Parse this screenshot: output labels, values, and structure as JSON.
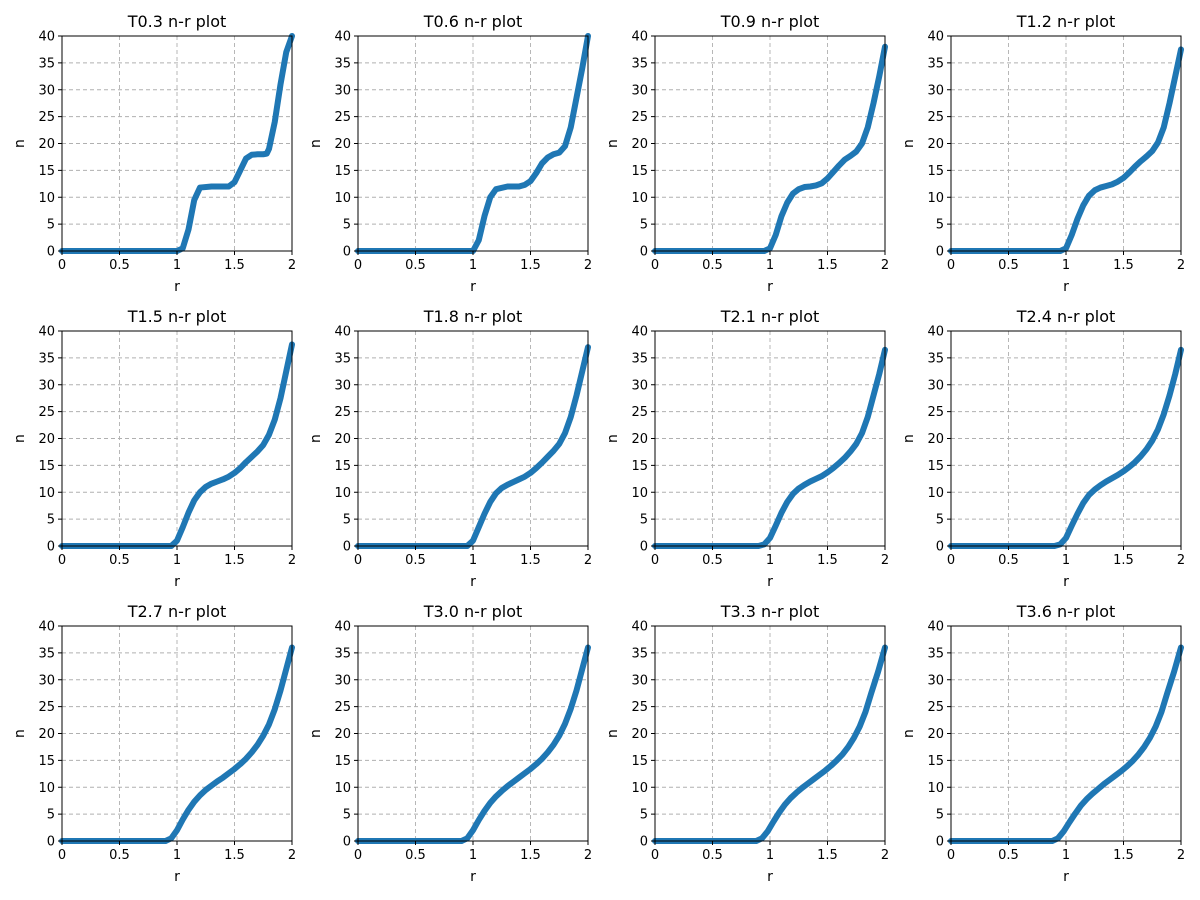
{
  "chart_data": [
    {
      "type": "line",
      "title": "T0.3 n-r plot",
      "xlabel": "r",
      "ylabel": "n",
      "xlim": [
        0,
        2
      ],
      "ylim": [
        0,
        40
      ],
      "xticks": [
        "0",
        "0.5",
        "1",
        "1.5",
        "2"
      ],
      "yticks": [
        "0",
        "5",
        "10",
        "15",
        "20",
        "25",
        "30",
        "35",
        "40"
      ],
      "grid": true,
      "color": "#1f77b4",
      "series": [
        {
          "x": [
            0,
            1.0,
            1.05,
            1.1,
            1.15,
            1.2,
            1.3,
            1.4,
            1.45,
            1.5,
            1.55,
            1.6,
            1.65,
            1.7,
            1.75,
            1.78,
            1.8,
            1.85,
            1.9,
            1.95,
            2.0
          ],
          "y": [
            0,
            0,
            0.5,
            4,
            9.5,
            11.8,
            12,
            12,
            12,
            12.8,
            15,
            17.2,
            17.9,
            18,
            18,
            18.1,
            19,
            24,
            31,
            37,
            40
          ]
        }
      ]
    },
    {
      "type": "line",
      "title": "T0.6 n-r plot",
      "xlabel": "r",
      "ylabel": "n",
      "xlim": [
        0,
        2
      ],
      "ylim": [
        0,
        40
      ],
      "xticks": [
        "0",
        "0.5",
        "1",
        "1.5",
        "2"
      ],
      "yticks": [
        "0",
        "5",
        "10",
        "15",
        "20",
        "25",
        "30",
        "35",
        "40"
      ],
      "grid": true,
      "color": "#1f77b4",
      "series": [
        {
          "x": [
            0,
            1.0,
            1.05,
            1.1,
            1.15,
            1.2,
            1.3,
            1.4,
            1.45,
            1.5,
            1.55,
            1.6,
            1.65,
            1.7,
            1.75,
            1.8,
            1.85,
            1.9,
            1.95,
            2.0
          ],
          "y": [
            0,
            0,
            2,
            6.5,
            10,
            11.5,
            12,
            12,
            12.3,
            13,
            14.5,
            16.3,
            17.4,
            18,
            18.3,
            19.5,
            23,
            28.5,
            34,
            40
          ]
        }
      ]
    },
    {
      "type": "line",
      "title": "T0.9 n-r plot",
      "xlabel": "r",
      "ylabel": "n",
      "xlim": [
        0,
        2
      ],
      "ylim": [
        0,
        40
      ],
      "xticks": [
        "0",
        "0.5",
        "1",
        "1.5",
        "2"
      ],
      "yticks": [
        "0",
        "5",
        "10",
        "15",
        "20",
        "25",
        "30",
        "35",
        "40"
      ],
      "grid": true,
      "color": "#1f77b4",
      "series": [
        {
          "x": [
            0,
            0.95,
            1.0,
            1.05,
            1.1,
            1.15,
            1.2,
            1.25,
            1.3,
            1.35,
            1.4,
            1.45,
            1.5,
            1.55,
            1.6,
            1.65,
            1.7,
            1.75,
            1.8,
            1.85,
            1.9,
            1.95,
            2.0
          ],
          "y": [
            0,
            0,
            0.5,
            3,
            6.5,
            9,
            10.7,
            11.5,
            11.9,
            12,
            12.2,
            12.6,
            13.5,
            14.7,
            15.9,
            17,
            17.7,
            18.5,
            20,
            23,
            27.5,
            32.5,
            38
          ]
        }
      ]
    },
    {
      "type": "line",
      "title": "T1.2 n-r plot",
      "xlabel": "r",
      "ylabel": "n",
      "xlim": [
        0,
        2
      ],
      "ylim": [
        0,
        40
      ],
      "xticks": [
        "0",
        "0.5",
        "1",
        "1.5",
        "2"
      ],
      "yticks": [
        "0",
        "5",
        "10",
        "15",
        "20",
        "25",
        "30",
        "35",
        "40"
      ],
      "grid": true,
      "color": "#1f77b4",
      "series": [
        {
          "x": [
            0,
            0.95,
            1.0,
            1.05,
            1.1,
            1.15,
            1.2,
            1.25,
            1.3,
            1.35,
            1.4,
            1.45,
            1.5,
            1.55,
            1.6,
            1.65,
            1.7,
            1.75,
            1.8,
            1.85,
            1.9,
            1.95,
            2.0
          ],
          "y": [
            0,
            0,
            0.5,
            3,
            6,
            8.5,
            10.3,
            11.3,
            11.8,
            12.1,
            12.4,
            12.9,
            13.6,
            14.6,
            15.7,
            16.7,
            17.6,
            18.6,
            20.2,
            23,
            27.5,
            32.5,
            37.5
          ]
        }
      ]
    },
    {
      "type": "line",
      "title": "T1.5 n-r plot",
      "xlabel": "r",
      "ylabel": "n",
      "xlim": [
        0,
        2
      ],
      "ylim": [
        0,
        40
      ],
      "xticks": [
        "0",
        "0.5",
        "1",
        "1.5",
        "2"
      ],
      "yticks": [
        "0",
        "5",
        "10",
        "15",
        "20",
        "25",
        "30",
        "35",
        "40"
      ],
      "grid": true,
      "color": "#1f77b4",
      "series": [
        {
          "x": [
            0,
            0.95,
            1.0,
            1.05,
            1.1,
            1.15,
            1.2,
            1.25,
            1.3,
            1.35,
            1.4,
            1.45,
            1.5,
            1.55,
            1.6,
            1.65,
            1.7,
            1.75,
            1.8,
            1.85,
            1.9,
            1.95,
            2.0
          ],
          "y": [
            0,
            0,
            1,
            3.5,
            6.2,
            8.5,
            10,
            11,
            11.6,
            12,
            12.4,
            12.9,
            13.6,
            14.5,
            15.6,
            16.6,
            17.6,
            18.8,
            20.7,
            23.5,
            27.5,
            32.5,
            37.5
          ]
        }
      ]
    },
    {
      "type": "line",
      "title": "T1.8 n-r plot",
      "xlabel": "r",
      "ylabel": "n",
      "xlim": [
        0,
        2
      ],
      "ylim": [
        0,
        40
      ],
      "xticks": [
        "0",
        "0.5",
        "1",
        "1.5",
        "2"
      ],
      "yticks": [
        "0",
        "5",
        "10",
        "15",
        "20",
        "25",
        "30",
        "35",
        "40"
      ],
      "grid": true,
      "color": "#1f77b4",
      "series": [
        {
          "x": [
            0,
            0.95,
            1.0,
            1.05,
            1.1,
            1.15,
            1.2,
            1.25,
            1.3,
            1.35,
            1.4,
            1.45,
            1.5,
            1.55,
            1.6,
            1.65,
            1.7,
            1.75,
            1.8,
            1.85,
            1.9,
            1.95,
            2.0
          ],
          "y": [
            0,
            0,
            1,
            3.5,
            6,
            8.2,
            9.8,
            10.8,
            11.4,
            11.9,
            12.4,
            12.9,
            13.6,
            14.5,
            15.5,
            16.6,
            17.7,
            19,
            21,
            24,
            28,
            32.5,
            37
          ]
        }
      ]
    },
    {
      "type": "line",
      "title": "T2.1 n-r plot",
      "xlabel": "r",
      "ylabel": "n",
      "xlim": [
        0,
        2
      ],
      "ylim": [
        0,
        40
      ],
      "xticks": [
        "0",
        "0.5",
        "1",
        "1.5",
        "2"
      ],
      "yticks": [
        "0",
        "5",
        "10",
        "15",
        "20",
        "25",
        "30",
        "35",
        "40"
      ],
      "grid": true,
      "color": "#1f77b4",
      "series": [
        {
          "x": [
            0,
            0.9,
            0.95,
            1.0,
            1.05,
            1.1,
            1.15,
            1.2,
            1.25,
            1.3,
            1.35,
            1.4,
            1.45,
            1.5,
            1.55,
            1.6,
            1.65,
            1.7,
            1.75,
            1.8,
            1.85,
            1.9,
            1.95,
            2.0
          ],
          "y": [
            0,
            0,
            0.3,
            1.5,
            3.8,
            6.2,
            8.2,
            9.7,
            10.7,
            11.4,
            12,
            12.5,
            13,
            13.7,
            14.5,
            15.4,
            16.4,
            17.6,
            19,
            21,
            24,
            28,
            32,
            36.5
          ]
        }
      ]
    },
    {
      "type": "line",
      "title": "T2.4 n-r plot",
      "xlabel": "r",
      "ylabel": "n",
      "xlim": [
        0,
        2
      ],
      "ylim": [
        0,
        40
      ],
      "xticks": [
        "0",
        "0.5",
        "1",
        "1.5",
        "2"
      ],
      "yticks": [
        "0",
        "5",
        "10",
        "15",
        "20",
        "25",
        "30",
        "35",
        "40"
      ],
      "grid": true,
      "color": "#1f77b4",
      "series": [
        {
          "x": [
            0,
            0.9,
            0.95,
            1.0,
            1.05,
            1.1,
            1.15,
            1.2,
            1.25,
            1.3,
            1.35,
            1.4,
            1.45,
            1.5,
            1.55,
            1.6,
            1.65,
            1.7,
            1.75,
            1.8,
            1.85,
            1.9,
            1.95,
            2.0
          ],
          "y": [
            0,
            0,
            0.3,
            1.5,
            3.8,
            6,
            8,
            9.5,
            10.5,
            11.3,
            12,
            12.6,
            13.2,
            13.9,
            14.7,
            15.6,
            16.7,
            18,
            19.6,
            21.7,
            24.5,
            28,
            32,
            36.5
          ]
        }
      ]
    },
    {
      "type": "line",
      "title": "T2.7 n-r plot",
      "xlabel": "r",
      "ylabel": "n",
      "xlim": [
        0,
        2
      ],
      "ylim": [
        0,
        40
      ],
      "xticks": [
        "0",
        "0.5",
        "1",
        "1.5",
        "2"
      ],
      "yticks": [
        "0",
        "5",
        "10",
        "15",
        "20",
        "25",
        "30",
        "35",
        "40"
      ],
      "grid": true,
      "color": "#1f77b4",
      "series": [
        {
          "x": [
            0,
            0.9,
            0.95,
            1.0,
            1.05,
            1.1,
            1.15,
            1.2,
            1.25,
            1.3,
            1.35,
            1.4,
            1.45,
            1.5,
            1.55,
            1.6,
            1.65,
            1.7,
            1.75,
            1.8,
            1.85,
            1.9,
            1.95,
            2.0
          ],
          "y": [
            0,
            0,
            0.5,
            2,
            4,
            5.8,
            7.3,
            8.5,
            9.5,
            10.3,
            11.1,
            11.8,
            12.6,
            13.4,
            14.3,
            15.3,
            16.5,
            17.9,
            19.6,
            21.7,
            24.5,
            28,
            32,
            36
          ]
        }
      ]
    },
    {
      "type": "line",
      "title": "T3.0 n-r plot",
      "xlabel": "r",
      "ylabel": "n",
      "xlim": [
        0,
        2
      ],
      "ylim": [
        0,
        40
      ],
      "xticks": [
        "0",
        "0.5",
        "1",
        "1.5",
        "2"
      ],
      "yticks": [
        "0",
        "5",
        "10",
        "15",
        "20",
        "25",
        "30",
        "35",
        "40"
      ],
      "grid": true,
      "color": "#1f77b4",
      "series": [
        {
          "x": [
            0,
            0.9,
            0.95,
            1.0,
            1.05,
            1.1,
            1.15,
            1.2,
            1.25,
            1.3,
            1.35,
            1.4,
            1.45,
            1.5,
            1.55,
            1.6,
            1.65,
            1.7,
            1.75,
            1.8,
            1.85,
            1.9,
            1.95,
            2.0
          ],
          "y": [
            0,
            0,
            0.5,
            2,
            3.9,
            5.6,
            7.1,
            8.3,
            9.3,
            10.2,
            11,
            11.8,
            12.6,
            13.4,
            14.3,
            15.3,
            16.5,
            17.9,
            19.6,
            21.8,
            24.6,
            28,
            32,
            36
          ]
        }
      ]
    },
    {
      "type": "line",
      "title": "T3.3 n-r plot",
      "xlabel": "r",
      "ylabel": "n",
      "xlim": [
        0,
        2
      ],
      "ylim": [
        0,
        40
      ],
      "xticks": [
        "0",
        "0.5",
        "1",
        "1.5",
        "2"
      ],
      "yticks": [
        "0",
        "5",
        "10",
        "15",
        "20",
        "25",
        "30",
        "35",
        "40"
      ],
      "grid": true,
      "color": "#1f77b4",
      "series": [
        {
          "x": [
            0,
            0.88,
            0.93,
            0.98,
            1.03,
            1.08,
            1.13,
            1.18,
            1.23,
            1.28,
            1.33,
            1.38,
            1.43,
            1.48,
            1.53,
            1.58,
            1.63,
            1.68,
            1.73,
            1.78,
            1.83,
            1.88,
            1.94,
            2.0
          ],
          "y": [
            0,
            0,
            0.5,
            1.8,
            3.6,
            5.3,
            6.8,
            8,
            9,
            9.9,
            10.7,
            11.5,
            12.3,
            13.1,
            14,
            15,
            16.1,
            17.5,
            19.2,
            21.3,
            24,
            27.5,
            31.5,
            36
          ]
        }
      ]
    },
    {
      "type": "line",
      "title": "T3.6 n-r plot",
      "xlabel": "r",
      "ylabel": "n",
      "xlim": [
        0,
        2
      ],
      "ylim": [
        0,
        40
      ],
      "xticks": [
        "0",
        "0.5",
        "1",
        "1.5",
        "2"
      ],
      "yticks": [
        "0",
        "5",
        "10",
        "15",
        "20",
        "25",
        "30",
        "35",
        "40"
      ],
      "grid": true,
      "color": "#1f77b4",
      "series": [
        {
          "x": [
            0,
            0.88,
            0.93,
            0.98,
            1.03,
            1.08,
            1.13,
            1.18,
            1.23,
            1.28,
            1.33,
            1.38,
            1.43,
            1.48,
            1.53,
            1.58,
            1.63,
            1.68,
            1.73,
            1.78,
            1.83,
            1.88,
            1.94,
            2.0
          ],
          "y": [
            0,
            0,
            0.5,
            1.8,
            3.5,
            5.1,
            6.6,
            7.8,
            8.8,
            9.7,
            10.6,
            11.4,
            12.2,
            13,
            13.9,
            14.9,
            16.1,
            17.5,
            19.2,
            21.3,
            24,
            27.5,
            31.5,
            36
          ]
        }
      ]
    }
  ]
}
